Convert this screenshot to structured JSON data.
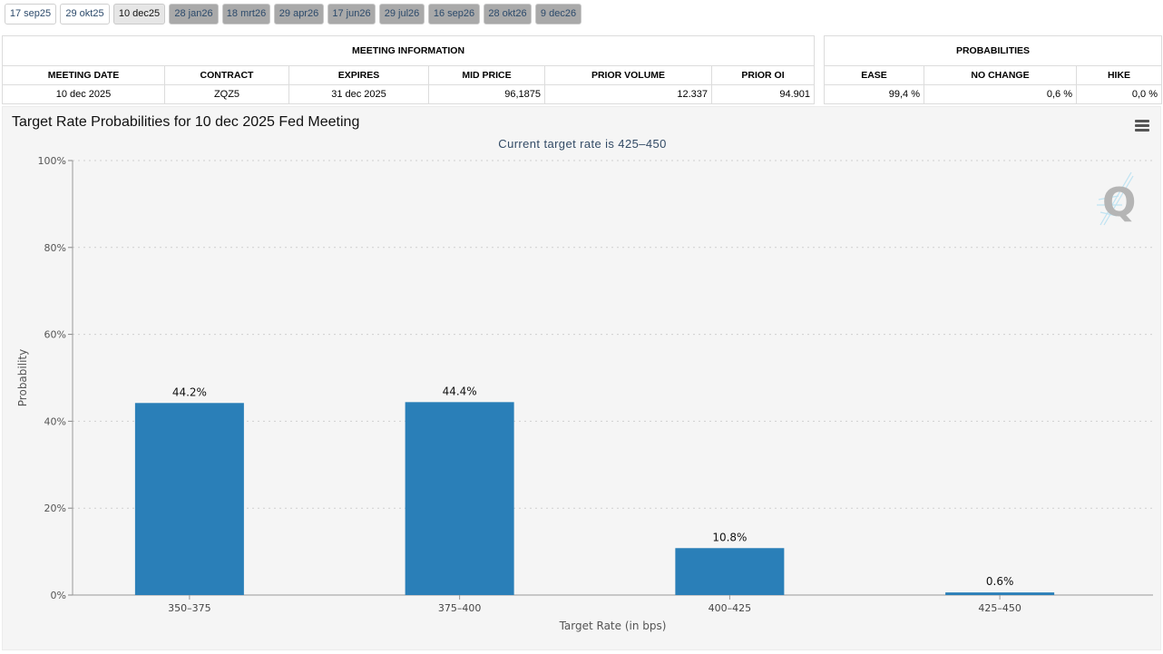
{
  "tabs": [
    {
      "label": "17 sep25",
      "state": "light"
    },
    {
      "label": "29 okt25",
      "state": "light"
    },
    {
      "label": "10 dec25",
      "state": "active"
    },
    {
      "label": "28 jan26",
      "state": "normal"
    },
    {
      "label": "18 mrt26",
      "state": "normal"
    },
    {
      "label": "29 apr26",
      "state": "normal"
    },
    {
      "label": "17 jun26",
      "state": "normal"
    },
    {
      "label": "29 jul26",
      "state": "normal"
    },
    {
      "label": "16 sep26",
      "state": "normal"
    },
    {
      "label": "28 okt26",
      "state": "normal"
    },
    {
      "label": "9 dec26",
      "state": "normal"
    }
  ],
  "meeting_info": {
    "caption": "MEETING INFORMATION",
    "headers": [
      "MEETING DATE",
      "CONTRACT",
      "EXPIRES",
      "MID PRICE",
      "PRIOR VOLUME",
      "PRIOR OI"
    ],
    "row": [
      "10 dec 2025",
      "ZQZ5",
      "31 dec 2025",
      "96,1875",
      "12.337",
      "94.901"
    ]
  },
  "probabilities": {
    "caption": "PROBABILITIES",
    "headers": [
      "EASE",
      "NO CHANGE",
      "HIKE"
    ],
    "row": [
      "99,4 %",
      "0,6 %",
      "0,0 %"
    ]
  },
  "chart_data": {
    "type": "bar",
    "title": "Target Rate Probabilities for 10 dec 2025 Fed Meeting",
    "subtitle": "Current target rate is 425–450",
    "xlabel": "Target Rate (in bps)",
    "ylabel": "Probability",
    "categories": [
      "350–375",
      "375–400",
      "400–425",
      "425–450"
    ],
    "values": [
      44.2,
      44.4,
      10.8,
      0.6
    ],
    "data_labels": [
      "44.2%",
      "44.4%",
      "10.8%",
      "0.6%"
    ],
    "ylim": [
      0,
      100
    ],
    "yticks": [
      0,
      20,
      40,
      60,
      80,
      100
    ],
    "ytick_labels": [
      "0%",
      "20%",
      "40%",
      "60%",
      "80%",
      "100%"
    ],
    "bar_color": "#2a7fb8",
    "grid": "dotted horizontal",
    "legend": "none"
  }
}
